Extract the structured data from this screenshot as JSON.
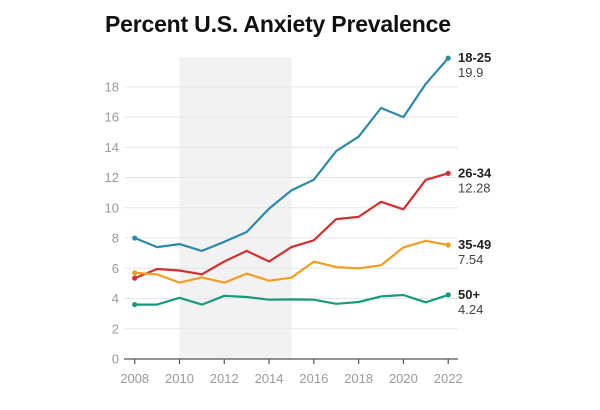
{
  "chart_data": {
    "type": "line",
    "title": "Percent U.S. Anxiety Prevalence",
    "xlabel": "",
    "ylabel": "",
    "x": [
      2008,
      2009,
      2010,
      2011,
      2012,
      2013,
      2014,
      2015,
      2016,
      2017,
      2018,
      2019,
      2020,
      2021,
      2022
    ],
    "xlim": [
      2008,
      2022
    ],
    "ylim": [
      0,
      19.9
    ],
    "x_ticks": [
      2008,
      2010,
      2012,
      2014,
      2016,
      2018,
      2020,
      2022
    ],
    "y_ticks": [
      0,
      2,
      4,
      6,
      8,
      10,
      12,
      14,
      16,
      18
    ],
    "grid": true,
    "shaded_region": {
      "x_start": 2010,
      "x_end": 2015,
      "color": "#f2f2f2"
    },
    "legend": "right-inline",
    "series": [
      {
        "name": "18-25",
        "color": "#2b8aa8",
        "end_label": "19.9",
        "values": [
          8.0,
          7.4,
          7.6,
          7.15,
          7.75,
          8.4,
          9.95,
          11.15,
          11.85,
          13.75,
          14.7,
          16.6,
          16.0,
          18.2,
          19.9
        ]
      },
      {
        "name": "26-34",
        "color": "#d0302f",
        "end_label": "12.28",
        "values": [
          5.35,
          5.95,
          5.85,
          5.6,
          6.45,
          7.15,
          6.45,
          7.4,
          7.85,
          9.25,
          9.4,
          10.4,
          9.9,
          11.85,
          12.28
        ]
      },
      {
        "name": "35-49",
        "color": "#f59c1c",
        "end_label": "7.54",
        "values": [
          5.7,
          5.6,
          5.05,
          5.4,
          5.05,
          5.65,
          5.18,
          5.38,
          6.44,
          6.08,
          6.0,
          6.2,
          7.38,
          7.82,
          7.54
        ]
      },
      {
        "name": "50+",
        "color": "#159a7c",
        "end_label": "4.24",
        "values": [
          3.6,
          3.6,
          4.05,
          3.6,
          4.18,
          4.1,
          3.92,
          3.94,
          3.92,
          3.65,
          3.77,
          4.14,
          4.23,
          3.75,
          4.24
        ]
      }
    ]
  }
}
